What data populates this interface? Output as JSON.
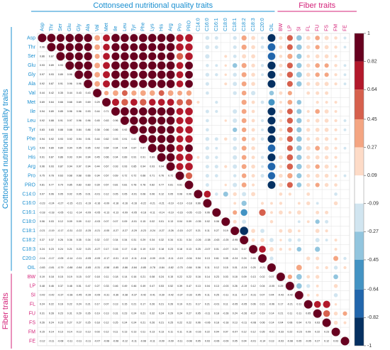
{
  "chart_data": {
    "type": "corrplot",
    "groups": [
      {
        "label": "Cottonseed nutritional quality traits",
        "color": "#1a8fd0"
      },
      {
        "label": "Fiber traits",
        "color": "#d4237a"
      }
    ],
    "variables": [
      "Asp",
      "Thr",
      "Ser",
      "Glu",
      "Gly",
      "Ala",
      "Val",
      "Met",
      "Ile",
      "Leu",
      "Tyr",
      "Phe",
      "Lys",
      "His",
      "Arg",
      "Pro",
      "PRO",
      "C14:0",
      "C16:0",
      "C16:1",
      "C18:0",
      "C18:1",
      "C18:2",
      "C18:3",
      "C20:0",
      "OIL",
      "BW",
      "LP",
      "SI",
      "FL",
      "FU",
      "FS",
      "FM",
      "FE"
    ],
    "matrix": [
      [
        1
      ],
      [
        0.96,
        1
      ],
      [
        0.86,
        0.87,
        1
      ],
      [
        0.93,
        0.89,
        0.93,
        1
      ],
      [
        0.97,
        0.93,
        0.89,
        0.96,
        1
      ],
      [
        0.92,
        0.87,
        0.91,
        0.96,
        0.96,
        1
      ],
      [
        0.44,
        0.42,
        0.35,
        0.44,
        0.43,
        0.43,
        1
      ],
      [
        0.69,
        0.64,
        0.66,
        0.68,
        0.69,
        0.69,
        0.29,
        1
      ],
      [
        0.94,
        0.89,
        0.85,
        0.96,
        0.96,
        0.93,
        0.44,
        0.71,
        1
      ],
      [
        0.92,
        0.88,
        0.91,
        0.97,
        0.96,
        0.96,
        0.45,
        0.63,
        0.96,
        1
      ],
      [
        0.83,
        0.83,
        0.88,
        0.88,
        0.84,
        0.86,
        0.38,
        0.66,
        0.86,
        0.92,
        1
      ],
      [
        0.94,
        0.92,
        0.93,
        0.92,
        0.94,
        0.91,
        0.44,
        0.62,
        0.93,
        0.91,
        0.82,
        1
      ],
      [
        0.93,
        0.89,
        0.89,
        0.94,
        0.95,
        0.95,
        0.42,
        0.64,
        0.94,
        0.94,
        0.87,
        0.87,
        1
      ],
      [
        0.91,
        0.87,
        0.86,
        0.93,
        0.94,
        0.94,
        0.45,
        0.66,
        0.94,
        0.89,
        0.91,
        0.91,
        0.89,
        1
      ],
      [
        0.96,
        0.93,
        0.87,
        0.94,
        0.97,
        0.94,
        0.44,
        0.67,
        0.93,
        0.93,
        0.85,
        0.94,
        0.93,
        0.94,
        1
      ],
      [
        0.75,
        0.78,
        0.63,
        0.68,
        0.68,
        0.66,
        0.34,
        0.57,
        0.69,
        0.72,
        0.72,
        0.68,
        0.71,
        0.76,
        0.72,
        1
      ],
      [
        0.81,
        0.77,
        0.79,
        0.85,
        0.83,
        0.83,
        0.39,
        0.57,
        0.81,
        0.81,
        0.78,
        0.78,
        0.82,
        0.77,
        0.81,
        0.61,
        1
      ],
      [
        0.07,
        0.06,
        0.05,
        0.02,
        0.05,
        0.01,
        -0.01,
        0.12,
        0.05,
        0.05,
        -0.01,
        0.08,
        0.06,
        0.12,
        0.05,
        0.08,
        0.06,
        1
      ],
      [
        -0.23,
        -0.24,
        -0.27,
        -0.15,
        -0.21,
        -0.19,
        -0.16,
        -0.09,
        -0.18,
        -0.16,
        -0.16,
        -0.22,
        -0.21,
        -0.21,
        -0.19,
        -0.19,
        -0.18,
        0.66,
        1
      ],
      [
        -0.18,
        -0.18,
        -0.05,
        -0.11,
        -0.14,
        -0.09,
        -0.05,
        -0.13,
        -0.13,
        -0.09,
        -0.05,
        -0.18,
        -0.11,
        -0.14,
        -0.19,
        -0.16,
        -0.05,
        -0.15,
        0.06,
        1
      ],
      [
        0.06,
        0.03,
        0.12,
        0.09,
        0.09,
        0.12,
        -0.03,
        0.07,
        0.07,
        0.09,
        -0.01,
        0.15,
        0.02,
        0.01,
        0.13,
        0.04,
        0.09,
        -0.35,
        0.02,
        0.08,
        1
      ],
      [
        -0.21,
        -0.19,
        -0.17,
        -0.31,
        -0.22,
        -0.25,
        -0.21,
        -0.05,
        -0.27,
        -0.27,
        -0.29,
        -0.23,
        -0.24,
        -0.27,
        -0.26,
        -0.15,
        -0.27,
        0.21,
        0.11,
        0.27,
        0.19,
        1
      ],
      [
        0.37,
        0.37,
        0.26,
        0.36,
        0.35,
        0.34,
        0.32,
        0.37,
        0.34,
        0.34,
        0.31,
        0.29,
        0.34,
        0.32,
        0.34,
        0.31,
        0.34,
        -0.26,
        -0.38,
        -0.63,
        -0.25,
        -0.95,
        1
      ],
      [
        0.24,
        0.23,
        0.24,
        0.21,
        0.22,
        0.23,
        -0.27,
        0.17,
        0.16,
        0.17,
        0.18,
        0.19,
        0.22,
        0.18,
        0.23,
        0.18,
        0.13,
        0.25,
        -0.07,
        0.01,
        -0.07,
        0.24,
        0.17,
        1
      ],
      [
        -0.14,
        -0.17,
        -0.05,
        -0.14,
        -0.11,
        -0.05,
        -0.09,
        -0.17,
        -0.01,
        -0.13,
        -0.11,
        -0.16,
        -0.09,
        -0.15,
        -0.11,
        -0.19,
        -0.04,
        0.04,
        0.13,
        0.61,
        0.05,
        -0.24,
        0.24,
        0.66,
        1
      ],
      [
        -0.83,
        -0.81,
        -0.79,
        -0.88,
        -0.84,
        -0.85,
        -0.31,
        -0.58,
        -0.85,
        -0.86,
        -0.84,
        -0.85,
        -0.78,
        -0.84,
        -0.82,
        -0.75,
        -0.84,
        0.06,
        0.11,
        0.12,
        0.15,
        0.01,
        -0.24,
        0.25,
        -0.21,
        1
      ],
      [
        0.19,
        0.18,
        0.15,
        0.19,
        0.15,
        0.07,
        0.18,
        0.11,
        0.18,
        0.14,
        0.16,
        0.21,
        0.08,
        0.24,
        0.15,
        0.22,
        0.22,
        0.16,
        0.14,
        0.23,
        0.03,
        0.18,
        0.09,
        0.13,
        0.02,
        0.07,
        1
      ],
      [
        0.48,
        0.46,
        0.37,
        0.48,
        0.51,
        0.47,
        0.27,
        0.33,
        0.46,
        0.49,
        0.46,
        0.49,
        0.47,
        0.53,
        0.52,
        0.39,
        0.47,
        0.13,
        0.04,
        0.13,
        -0.03,
        0.26,
        -0.19,
        0.12,
        0.04,
        -0.05,
        0.29,
        1
      ],
      [
        -0.42,
        -0.42,
        -0.37,
        -0.38,
        -0.45,
        -0.39,
        -0.09,
        -0.31,
        -0.36,
        -0.38,
        -0.37,
        -0.42,
        -0.41,
        -0.39,
        -0.42,
        -0.37,
        -0.33,
        0.05,
        0.11,
        0.25,
        -0.11,
        0.11,
        -0.17,
        -0.31,
        0.07,
        0.44,
        -0.43,
        -0.42,
        1
      ],
      [
        0.24,
        0.22,
        0.16,
        0.22,
        0.24,
        0.21,
        0.17,
        0.07,
        0.13,
        0.15,
        0.21,
        0.17,
        0.26,
        0.21,
        0.26,
        0.19,
        0.21,
        0.17,
        0.21,
        -0.01,
        0.11,
        -0.05,
        -0.05,
        0.06,
        0.21,
        -0.06,
        0.17,
        -0.21,
        0.11,
        1
      ],
      [
        0.31,
        0.28,
        0.23,
        0.31,
        0.29,
        0.26,
        0.19,
        0.13,
        0.31,
        0.23,
        0.24,
        0.21,
        0.32,
        0.24,
        0.29,
        0.24,
        0.27,
        0.05,
        -0.11,
        0.18,
        -0.28,
        0.24,
        -0.26,
        -0.37,
        0.19,
        0.14,
        0.21,
        0.11,
        0.11,
        0.65,
        1
      ],
      [
        0.26,
        0.24,
        0.23,
        0.27,
        0.27,
        0.25,
        0.18,
        0.12,
        0.25,
        0.24,
        0.24,
        0.21,
        0.26,
        0.21,
        0.25,
        0.22,
        0.22,
        0.06,
        -0.06,
        0.18,
        -0.18,
        0.13,
        -0.11,
        -0.08,
        0.06,
        0.14,
        0.04,
        0.06,
        0.04,
        0.73,
        0.63,
        1
      ],
      [
        0.15,
        0.14,
        0.13,
        0.14,
        0.13,
        0.13,
        0.03,
        0.12,
        0.11,
        0.13,
        0.13,
        0.11,
        0.13,
        0.13,
        0.11,
        0.11,
        0.16,
        -0.16,
        0.22,
        0.04,
        0.07,
        -0.07,
        0.12,
        0.12,
        0.35,
        -0.21,
        -0.33,
        0.22,
        -0.23,
        0.09,
        0.22,
        0.23,
        1
      ],
      [
        -0.12,
        -0.11,
        -0.08,
        -0.11,
        -0.11,
        -0.11,
        -0.07,
        -0.08,
        -0.08,
        -0.12,
        -0.11,
        -0.08,
        -0.11,
        -0.09,
        -0.09,
        -0.11,
        -0.08,
        0.05,
        0.03,
        -0.06,
        -0.09,
        0.05,
        0.04,
        -0.01,
        -0.14,
        0.13,
        -0.03,
        -0.08,
        0.05,
        -0.05,
        0.27,
        0.12,
        0.03,
        1
      ]
    ],
    "colorbar": {
      "ticks": [
        1,
        0.82,
        0.64,
        0.45,
        0.27,
        0.09,
        -0.09,
        -0.27,
        -0.45,
        -0.64,
        -0.82,
        -1
      ],
      "colors": [
        "#67001F",
        "#B2182B",
        "#D6604D",
        "#F4A582",
        "#FDDBC7",
        "#FFFFFF",
        "#D1E5F0",
        "#92C5DE",
        "#4393C3",
        "#2166AC",
        "#053061"
      ]
    }
  }
}
